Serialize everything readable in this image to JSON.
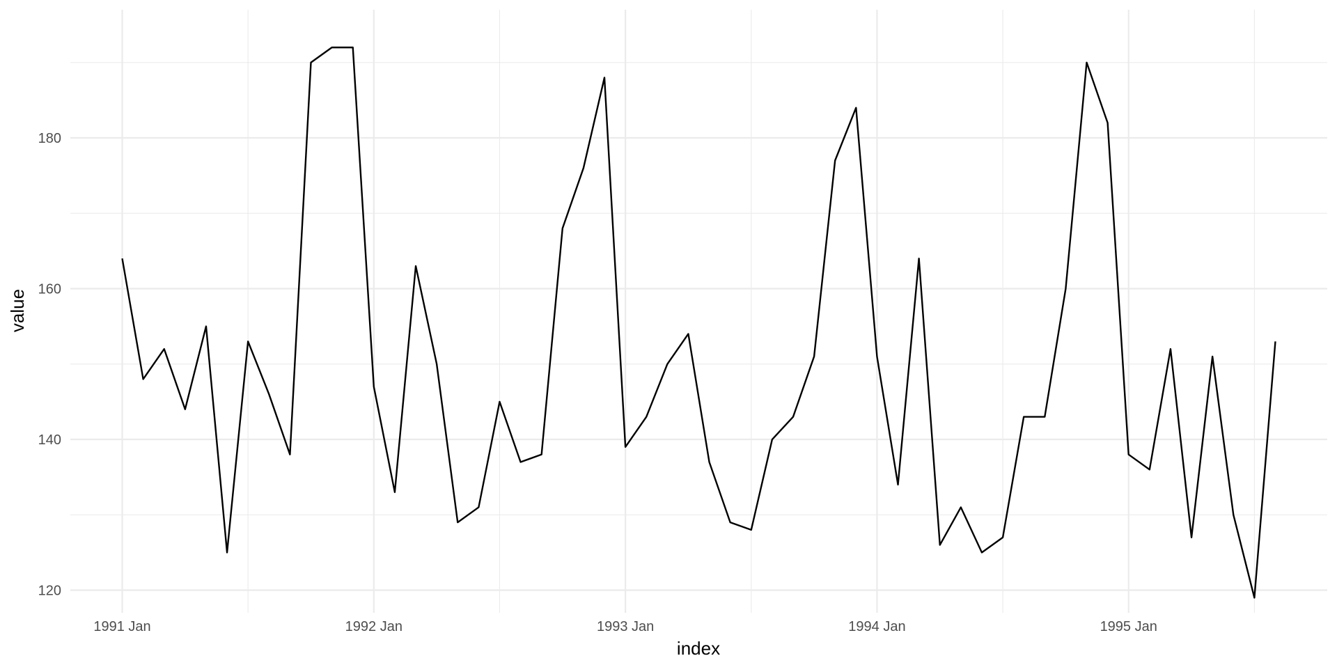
{
  "chart_data": {
    "type": "line",
    "title": "",
    "xlabel": "index",
    "ylabel": "value",
    "x_axis": {
      "type": "monthly",
      "range": [
        "1991 Jan",
        "1995 Aug"
      ],
      "tick_labels": [
        "1991 Jan",
        "1992 Jan",
        "1993 Jan",
        "1994 Jan",
        "1995 Jan"
      ],
      "minor_grid": [
        "1991 Jul",
        "1992 Jul",
        "1993 Jul",
        "1994 Jul",
        "1995 Jul"
      ]
    },
    "ylim": [
      117,
      197
    ],
    "y_ticks": [
      120,
      140,
      160,
      180
    ],
    "y_minor_grid": [
      130,
      150,
      170,
      190
    ],
    "grid": true,
    "legend": "none",
    "line_color": "#000000",
    "series": [
      {
        "x": [
          "1991 Jan",
          "1991 Feb",
          "1991 Mar",
          "1991 Apr",
          "1991 May",
          "1991 Jun",
          "1991 Jul",
          "1991 Aug",
          "1991 Sep",
          "1991 Oct",
          "1991 Nov",
          "1991 Dec",
          "1992 Jan",
          "1992 Feb",
          "1992 Mar",
          "1992 Apr",
          "1992 May",
          "1992 Jun",
          "1992 Jul",
          "1992 Aug",
          "1992 Sep",
          "1992 Oct",
          "1992 Nov",
          "1992 Dec",
          "1993 Jan",
          "1993 Feb",
          "1993 Mar",
          "1993 Apr",
          "1993 May",
          "1993 Jun",
          "1993 Jul",
          "1993 Aug",
          "1993 Sep",
          "1993 Oct",
          "1993 Nov",
          "1993 Dec",
          "1994 Jan",
          "1994 Feb",
          "1994 Mar",
          "1994 Apr",
          "1994 May",
          "1994 Jun",
          "1994 Jul",
          "1994 Aug",
          "1994 Sep",
          "1994 Oct",
          "1994 Nov",
          "1994 Dec",
          "1995 Jan",
          "1995 Feb",
          "1995 Mar",
          "1995 Apr",
          "1995 May",
          "1995 Jun",
          "1995 Jul",
          "1995 Aug"
        ],
        "values": [
          164,
          148,
          152,
          144,
          155,
          125,
          153,
          146,
          138,
          190,
          192,
          192,
          147,
          133,
          163,
          150,
          129,
          131,
          145,
          137,
          138,
          168,
          176,
          188,
          139,
          143,
          150,
          154,
          137,
          129,
          128,
          140,
          143,
          151,
          177,
          184,
          151,
          134,
          164,
          126,
          131,
          125,
          127,
          143,
          143,
          160,
          190,
          182,
          138,
          136,
          152,
          127,
          151,
          130,
          119,
          153
        ]
      }
    ]
  }
}
